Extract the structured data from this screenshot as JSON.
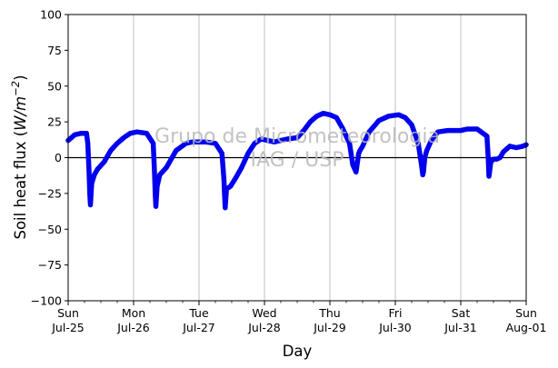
{
  "chart_data": {
    "type": "line",
    "xlabel": "Day",
    "ylabel_text": "Soil heat flux (",
    "ylabel_unit": "W/m",
    "ylabel_exp": "−2",
    "ylabel_close": ")",
    "ylim": [
      -100,
      100
    ],
    "xlim_days": [
      0,
      7
    ],
    "yticks": [
      -100,
      -75,
      -50,
      -25,
      0,
      25,
      50,
      75,
      100
    ],
    "ytick_labels": [
      "−100",
      "−75",
      "−50",
      "−25",
      "0",
      "25",
      "50",
      "75",
      "100"
    ],
    "xticks": [
      {
        "day": 0,
        "weekday": "Sun",
        "date": "Jul-25"
      },
      {
        "day": 1,
        "weekday": "Mon",
        "date": "Jul-26"
      },
      {
        "day": 2,
        "weekday": "Tue",
        "date": "Jul-27"
      },
      {
        "day": 3,
        "weekday": "Wed",
        "date": "Jul-28"
      },
      {
        "day": 4,
        "weekday": "Thu",
        "date": "Jul-29"
      },
      {
        "day": 5,
        "weekday": "Fri",
        "date": "Jul-30"
      },
      {
        "day": 6,
        "weekday": "Sat",
        "date": "Jul-31"
      },
      {
        "day": 7,
        "weekday": "Sun",
        "date": "Aug-01"
      }
    ],
    "minor_ticks_days": [
      0.25,
      0.5,
      0.75,
      1.25,
      1.5,
      1.75,
      2.25,
      2.5,
      2.75,
      3.25,
      3.5,
      3.75,
      4.25,
      4.5,
      4.75,
      5.25,
      5.5,
      5.75,
      6.25,
      6.5,
      6.75
    ],
    "grid": "vertical at major ticks",
    "zero_line": true,
    "series": [
      {
        "color": "#0000ee",
        "x_days": [
          0.0,
          0.05,
          0.1,
          0.2,
          0.28,
          0.3,
          0.32,
          0.33,
          0.34,
          0.36,
          0.4,
          0.45,
          0.55,
          0.65,
          0.75,
          0.85,
          0.95,
          1.05,
          1.2,
          1.3,
          1.32,
          1.33,
          1.34,
          1.36,
          1.4,
          1.5,
          1.65,
          1.8,
          1.9,
          2.0,
          2.1,
          2.25,
          2.35,
          2.38,
          2.39,
          2.4,
          2.42,
          2.48,
          2.55,
          2.65,
          2.75,
          2.85,
          2.95,
          3.05,
          3.15,
          3.25,
          3.35,
          3.5,
          3.6,
          3.7,
          3.8,
          3.9,
          4.0,
          4.1,
          4.2,
          4.3,
          4.35,
          4.4,
          4.43,
          4.44,
          4.46,
          4.5,
          4.6,
          4.75,
          4.9,
          5.05,
          5.15,
          5.25,
          5.35,
          5.4,
          5.42,
          5.43,
          5.45,
          5.48,
          5.55,
          5.65,
          5.8,
          5.9,
          6.0,
          6.1,
          6.25,
          6.4,
          6.42,
          6.43,
          6.44,
          6.46,
          6.5,
          6.55,
          6.6,
          6.65,
          6.75,
          6.85,
          6.95,
          7.0
        ],
        "y": [
          12,
          14,
          16,
          17,
          17,
          10,
          -10,
          -25,
          -33,
          -18,
          -12,
          -8,
          -3,
          5,
          10,
          14,
          17,
          18,
          17,
          10,
          -10,
          -25,
          -34,
          -20,
          -12,
          -7,
          5,
          10,
          11,
          11,
          11,
          10,
          3,
          -15,
          -26,
          -35,
          -22,
          -20,
          -15,
          -7,
          3,
          10,
          13,
          12,
          11,
          12,
          13,
          14,
          19,
          25,
          29,
          31,
          30,
          28,
          20,
          10,
          -5,
          -10,
          0,
          3,
          5,
          8,
          18,
          26,
          29,
          30,
          28,
          23,
          10,
          -5,
          -12,
          -10,
          0,
          5,
          12,
          18,
          19,
          19,
          19,
          20,
          20,
          15,
          0,
          -13,
          -10,
          -3,
          -1,
          -1,
          0,
          4,
          8,
          7,
          8,
          9
        ]
      }
    ],
    "watermark_line1": "Grupo de Micrometeorologia",
    "watermark_line2": "IAG / USP"
  }
}
